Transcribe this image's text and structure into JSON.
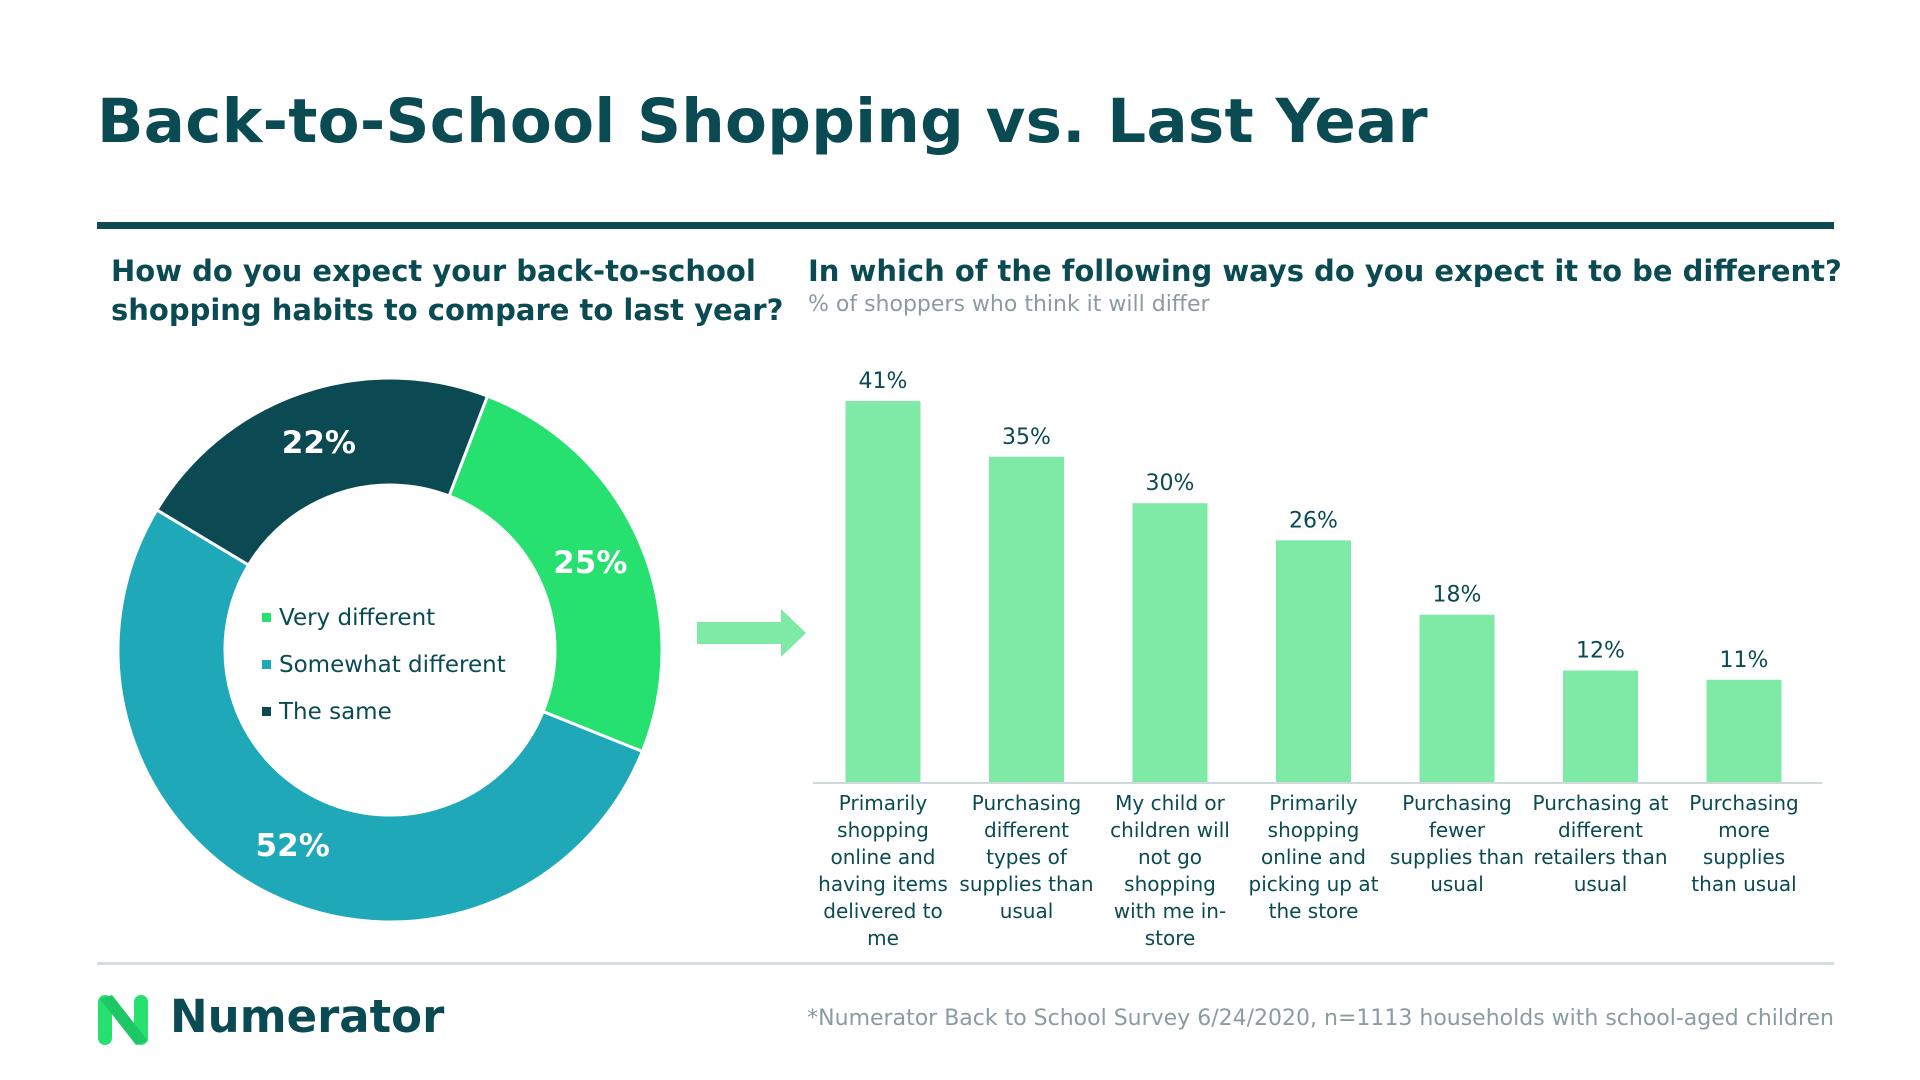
{
  "page": {
    "title": "Back-to-School Shopping vs. Last Year",
    "footnote": "*Numerator Back to School Survey 6/24/2020, n=1113 households with school-aged children",
    "brand": "Numerator",
    "colors": {
      "brand_dark": "#0a4a52",
      "very_different": "#26e070",
      "somewhat_different": "#1ea8b8",
      "the_same": "#0b4a52",
      "bar": "#7eeaa6"
    }
  },
  "chart_data": [
    {
      "type": "pie",
      "title": "How do you expect your back-to-school shopping habits to compare to last year?",
      "donut": true,
      "slices": [
        {
          "label": "Very different",
          "value": 25,
          "display": "25%",
          "color": "#26e070"
        },
        {
          "label": "Somewhat different",
          "value": 52,
          "display": "52%",
          "color": "#1ea8b8"
        },
        {
          "label": "The same",
          "value": 22,
          "display": "22%",
          "color": "#0b4a52"
        }
      ],
      "legend": [
        "Very different",
        "Somewhat different",
        "The same"
      ],
      "legend_position": "center"
    },
    {
      "type": "bar",
      "title": "In which of the following ways do you expect it to be different?",
      "subtitle": "% of shoppers who think it will differ",
      "categories": [
        "Primarily shopping online and having items delivered to me",
        "Purchasing different types of supplies than usual",
        "My child or children will not go shopping with me in-store",
        "Primarily shopping online and picking up at the store",
        "Purchasing fewer supplies than usual",
        "Purchasing at different retailers than usual",
        "Purchasing more supplies than usual"
      ],
      "category_lines": [
        [
          "Primarily",
          "shopping",
          "online and",
          "having items",
          "delivered to",
          "me"
        ],
        [
          "Purchasing",
          "different",
          "types of",
          "supplies than",
          "usual"
        ],
        [
          "My child or",
          "children will",
          "not go",
          "shopping",
          "with me in-",
          "store"
        ],
        [
          "Primarily",
          "shopping",
          "online and",
          "picking up at",
          "the store"
        ],
        [
          "Purchasing",
          "fewer",
          "supplies than",
          "usual"
        ],
        [
          "Purchasing at",
          "different",
          "retailers than",
          "usual"
        ],
        [
          "Purchasing",
          "more supplies",
          "than usual"
        ]
      ],
      "values": [
        41,
        35,
        30,
        26,
        18,
        12,
        11
      ],
      "data_labels": [
        "41%",
        "35%",
        "30%",
        "26%",
        "18%",
        "12%",
        "11%"
      ],
      "ylim": [
        0,
        41
      ],
      "grid": false,
      "xlabel": "",
      "ylabel": ""
    }
  ]
}
